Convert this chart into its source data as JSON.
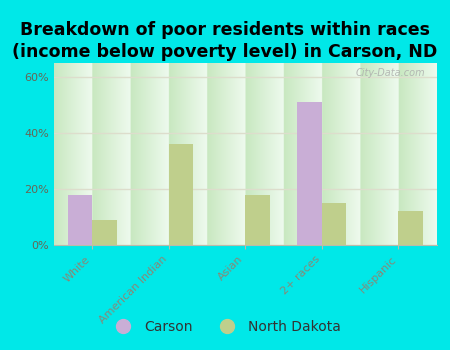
{
  "title": "Breakdown of poor residents within races\n(income below poverty level) in Carson, ND",
  "categories": [
    "White",
    "American Indian",
    "Asian",
    "2+ races",
    "Hispanic"
  ],
  "carson_values": [
    18,
    0,
    0,
    51,
    0
  ],
  "nd_values": [
    9,
    36,
    18,
    15,
    12
  ],
  "carson_color": "#c9aed6",
  "nd_color": "#bfcf8c",
  "ylim": [
    0,
    65
  ],
  "yticks": [
    0,
    20,
    40,
    60
  ],
  "ytick_labels": [
    "0%",
    "20%",
    "40%",
    "60%"
  ],
  "bar_width": 0.32,
  "outer_background": "#00e8e8",
  "legend_labels": [
    "Carson",
    "North Dakota"
  ],
  "title_fontsize": 12.5,
  "tick_fontsize": 8,
  "legend_fontsize": 10,
  "watermark": "City-Data.com",
  "grid_color": "#ddddcc",
  "spine_color": "#bbbbaa",
  "tick_color": "#888877",
  "ytick_color": "#666655"
}
